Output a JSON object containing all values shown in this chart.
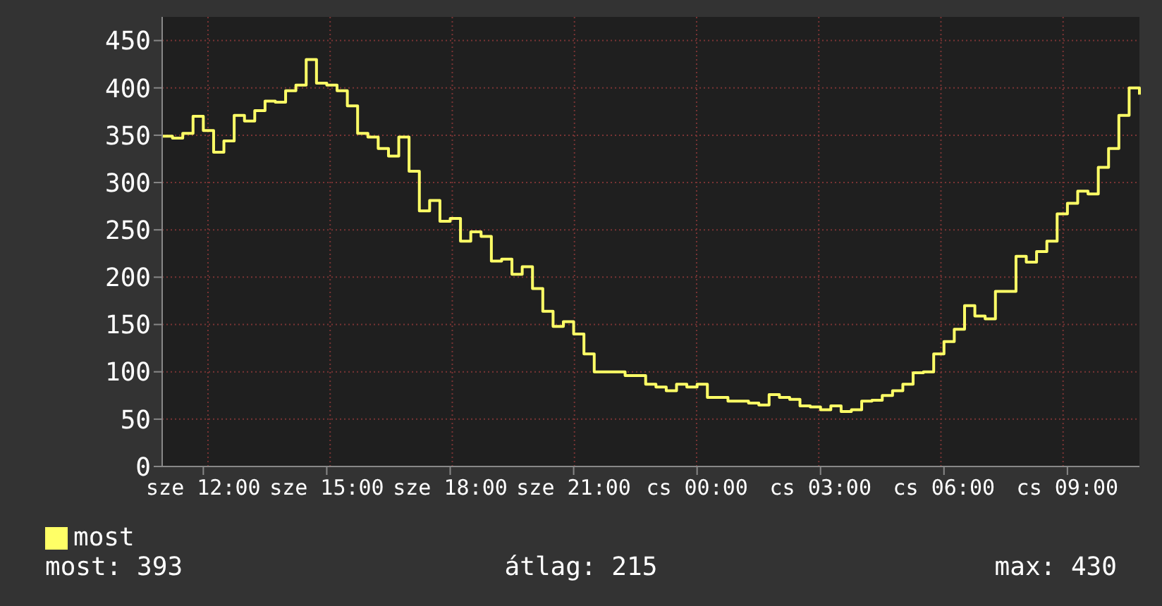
{
  "chart_data": {
    "type": "step",
    "categories": [
      null,
      null,
      null,
      null,
      "sze 12:00",
      null,
      null,
      null,
      null,
      null,
      null,
      null,
      null,
      null,
      null,
      null,
      "sze 15:00",
      null,
      null,
      null,
      null,
      null,
      null,
      null,
      null,
      null,
      null,
      null,
      "sze 18:00",
      null,
      null,
      null,
      null,
      null,
      null,
      null,
      null,
      null,
      null,
      null,
      "sze 21:00",
      null,
      null,
      null,
      null,
      null,
      null,
      null,
      null,
      null,
      null,
      null,
      "cs 00:00",
      null,
      null,
      null,
      null,
      null,
      null,
      null,
      null,
      null,
      null,
      null,
      "cs 03:00",
      null,
      null,
      null,
      null,
      null,
      null,
      null,
      null,
      null,
      null,
      null,
      "cs 06:00",
      null,
      null,
      null,
      null,
      null,
      null,
      null,
      null,
      null,
      null,
      null,
      "cs 09:00",
      null,
      null,
      null,
      null,
      null,
      null,
      null
    ],
    "series": [
      {
        "name": "most",
        "color": "#ffff66",
        "values": [
          349,
          347,
          352,
          370,
          355,
          332,
          344,
          371,
          365,
          376,
          386,
          385,
          397,
          403,
          430,
          405,
          403,
          397,
          381,
          352,
          348,
          336,
          328,
          348,
          312,
          270,
          281,
          259,
          262,
          238,
          248,
          243,
          217,
          219,
          203,
          211,
          188,
          164,
          148,
          153,
          140,
          119,
          100,
          100,
          100,
          96,
          96,
          87,
          84,
          80,
          87,
          84,
          87,
          73,
          73,
          69,
          69,
          67,
          65,
          76,
          73,
          71,
          64,
          63,
          60,
          64,
          58,
          60,
          69,
          70,
          75,
          80,
          87,
          99,
          100,
          119,
          132,
          145,
          170,
          159,
          156,
          185,
          185,
          222,
          216,
          227,
          238,
          267,
          278,
          291,
          288,
          316,
          336,
          371,
          400,
          393
        ]
      }
    ],
    "ylim": [
      0,
      475
    ],
    "yticks": [
      0,
      50,
      100,
      150,
      200,
      250,
      300,
      350,
      400,
      450
    ],
    "grid": true,
    "legend": "bottom left",
    "annotations": [
      "most: 393",
      "átlag: 215",
      "max: 430"
    ]
  }
}
